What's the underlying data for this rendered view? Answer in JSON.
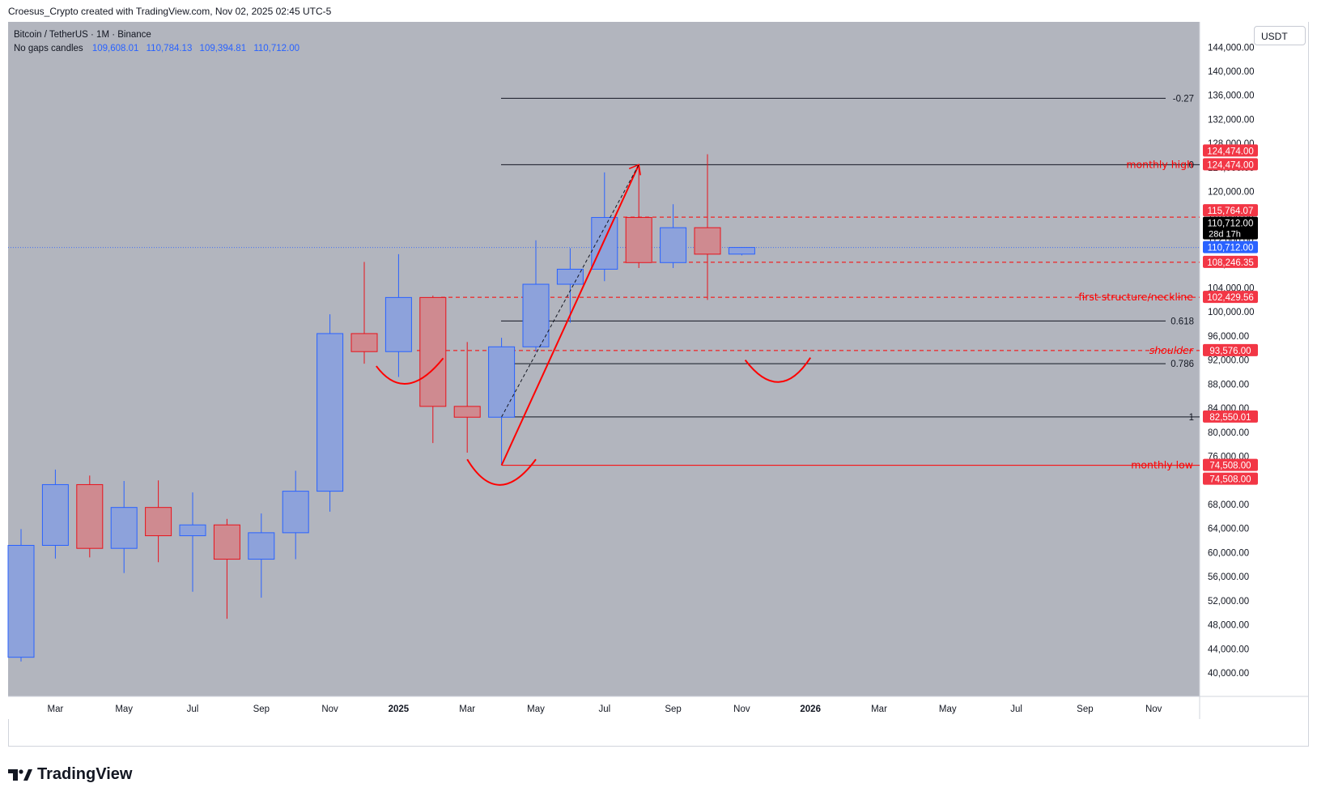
{
  "header": {
    "attribution": "Croesus_Crypto created with TradingView.com, Nov 02, 2025 02:45 UTC-5"
  },
  "legend": {
    "symbol": "Bitcoin / TetherUS · 1M · Binance",
    "candle_type": "No gaps candles",
    "ohlc": [
      "109,608.01",
      "110,784.13",
      "109,394.81",
      "110,712.00"
    ]
  },
  "currency_button": "USDT",
  "brand": "TradingView",
  "colors": {
    "up": "#8da2db",
    "up_border": "#2962ff",
    "down": "#cf8a90",
    "down_border": "#e8121b",
    "bg": "#b2b5be",
    "red": "#ff0000",
    "label_red": "#f23645"
  },
  "chart_data": {
    "type": "candlestick",
    "interval": "1M",
    "ylim": [
      36000,
      147000
    ],
    "y_ticks": [
      "40,000.00",
      "44,000.00",
      "48,000.00",
      "52,000.00",
      "56,000.00",
      "60,000.00",
      "64,000.00",
      "68,000.00",
      "72,000.00",
      "76,000.00",
      "80,000.00",
      "84,000.00",
      "88,000.00",
      "92,000.00",
      "96,000.00",
      "100,000.00",
      "104,000.00",
      "108,000.00",
      "112,000.00",
      "116,000.00",
      "120,000.00",
      "124,000.00",
      "128,000.00",
      "132,000.00",
      "136,000.00",
      "140,000.00",
      "144,000.00"
    ],
    "x_labels": [
      {
        "label": "Mar",
        "i": 1
      },
      {
        "label": "May",
        "i": 3
      },
      {
        "label": "Jul",
        "i": 5
      },
      {
        "label": "Sep",
        "i": 7
      },
      {
        "label": "Nov",
        "i": 9
      },
      {
        "label": "2025",
        "i": 11,
        "bold": true
      },
      {
        "label": "Mar",
        "i": 13
      },
      {
        "label": "May",
        "i": 15
      },
      {
        "label": "Jul",
        "i": 17
      },
      {
        "label": "Sep",
        "i": 19
      },
      {
        "label": "Nov",
        "i": 21
      },
      {
        "label": "2026",
        "i": 23,
        "bold": true
      },
      {
        "label": "Mar",
        "i": 25
      },
      {
        "label": "May",
        "i": 27
      },
      {
        "label": "Jul",
        "i": 29
      },
      {
        "label": "Sep",
        "i": 31
      },
      {
        "label": "Nov",
        "i": 33
      }
    ],
    "candles": [
      {
        "m": "2024-02",
        "o": 42600,
        "h": 63900,
        "l": 41900,
        "c": 61200
      },
      {
        "m": "2024-03",
        "o": 61200,
        "h": 73800,
        "l": 59000,
        "c": 71300
      },
      {
        "m": "2024-04",
        "o": 71300,
        "h": 72800,
        "l": 59200,
        "c": 60700
      },
      {
        "m": "2024-05",
        "o": 60700,
        "h": 71900,
        "l": 56600,
        "c": 67500
      },
      {
        "m": "2024-06",
        "o": 67500,
        "h": 72000,
        "l": 58400,
        "c": 62800
      },
      {
        "m": "2024-07",
        "o": 62800,
        "h": 70000,
        "l": 53500,
        "c": 64600
      },
      {
        "m": "2024-08",
        "o": 64600,
        "h": 65600,
        "l": 49000,
        "c": 58900
      },
      {
        "m": "2024-09",
        "o": 58900,
        "h": 66500,
        "l": 52500,
        "c": 63300
      },
      {
        "m": "2024-10",
        "o": 63300,
        "h": 73600,
        "l": 58900,
        "c": 70200
      },
      {
        "m": "2024-11",
        "o": 70200,
        "h": 99600,
        "l": 66800,
        "c": 96400
      },
      {
        "m": "2024-12",
        "o": 96400,
        "h": 108300,
        "l": 91400,
        "c": 93400
      },
      {
        "m": "2025-01",
        "o": 93400,
        "h": 109600,
        "l": 89200,
        "c": 102400
      },
      {
        "m": "2025-02",
        "o": 102400,
        "h": 102700,
        "l": 78200,
        "c": 84300
      },
      {
        "m": "2025-03",
        "o": 84300,
        "h": 95000,
        "l": 76600,
        "c": 82500
      },
      {
        "m": "2025-04",
        "o": 82500,
        "h": 95700,
        "l": 74500,
        "c": 94200
      },
      {
        "m": "2025-05",
        "o": 94200,
        "h": 111900,
        "l": 93400,
        "c": 104600
      },
      {
        "m": "2025-06",
        "o": 104600,
        "h": 110600,
        "l": 98200,
        "c": 107100
      },
      {
        "m": "2025-07",
        "o": 107100,
        "h": 123200,
        "l": 105100,
        "c": 115700
      },
      {
        "m": "2025-08",
        "o": 115700,
        "h": 124474,
        "l": 107300,
        "c": 108200
      },
      {
        "m": "2025-09",
        "o": 108200,
        "h": 117900,
        "l": 107300,
        "c": 114000
      },
      {
        "m": "2025-10",
        "o": 114000,
        "h": 126200,
        "l": 102000,
        "c": 109600
      },
      {
        "m": "2025-11",
        "o": 109608.01,
        "h": 110784.13,
        "l": 109394.81,
        "c": 110712.0
      }
    ],
    "fib_lines": [
      {
        "label": "-0.27",
        "value": 135500
      },
      {
        "label": "0",
        "value": 124474
      },
      {
        "label": "0.618",
        "value": 98500
      },
      {
        "label": "0.786",
        "value": 91400
      },
      {
        "label": "1",
        "value": 82550
      }
    ],
    "dashed_levels": [
      115764.07,
      108246.35,
      102429.56,
      93576.0
    ],
    "annotations": [
      {
        "text": "monthly high",
        "value": 124474
      },
      {
        "text": "first structure/neckline",
        "value": 102429.56
      },
      {
        "text": "shoulder",
        "value": 93576.0
      },
      {
        "text": "monthly low",
        "value": 74508.0
      }
    ],
    "price_labels": [
      {
        "text": "124,474.00",
        "value": 124474,
        "offset": -17,
        "color": "#f23645"
      },
      {
        "text": "124,474.00",
        "value": 124474,
        "offset": 0,
        "color": "#f23645"
      },
      {
        "text": "115,764.07",
        "value": 115764.07,
        "offset": -8,
        "color": "#f23645"
      },
      {
        "text": "110,712.00",
        "value": 110712,
        "offset": -30,
        "color": "#000000",
        "sub": "28d 17h"
      },
      {
        "text": "110,712.00",
        "value": 110712,
        "offset": 0,
        "color": "#2962ff"
      },
      {
        "text": "108,246.35",
        "value": 108246.35,
        "offset": 0,
        "color": "#f23645"
      },
      {
        "text": "102,429.56",
        "value": 102429.56,
        "offset": 0,
        "color": "#f23645"
      },
      {
        "text": "93,576.00",
        "value": 93576,
        "offset": 0,
        "color": "#f23645"
      },
      {
        "text": "82,550.01",
        "value": 82550.01,
        "offset": 0,
        "color": "#f23645"
      },
      {
        "text": "74,508.00",
        "value": 74508,
        "offset": 0,
        "color": "#f23645"
      },
      {
        "text": "74,508.00",
        "value": 74508,
        "offset": 17,
        "color": "#f23645"
      }
    ],
    "current_price": 110712.0
  }
}
